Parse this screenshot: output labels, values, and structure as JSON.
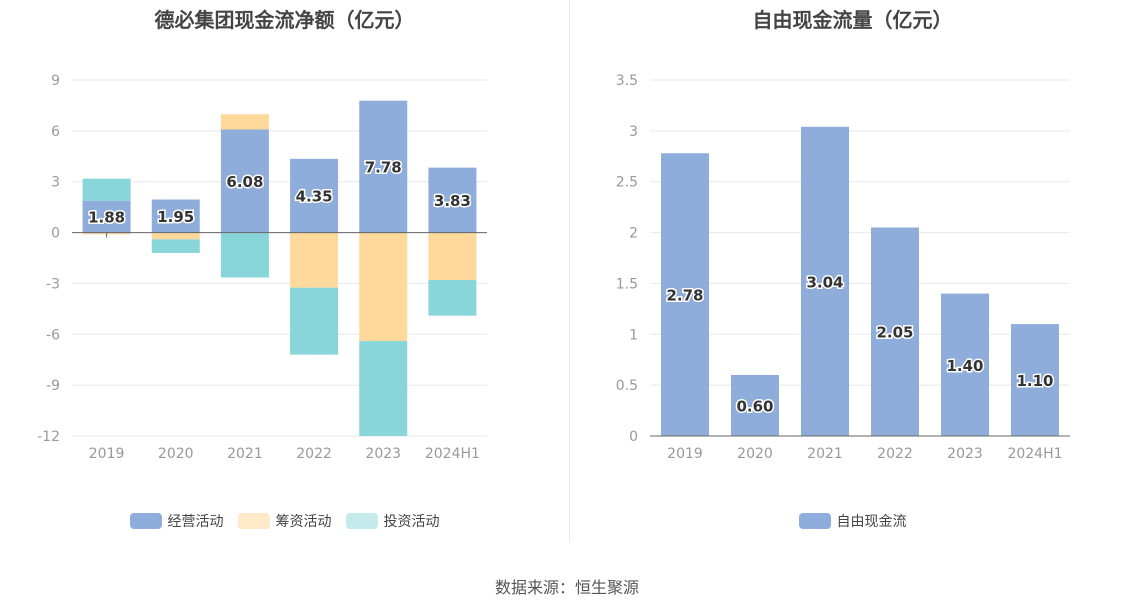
{
  "source": "数据来源：恒生聚源",
  "colors": {
    "operating": "#8eaddb",
    "financing": "#ffd99c",
    "investing": "#88d6da",
    "operating_legend": "#8eaddb",
    "financing_legend": "#ffe9c6",
    "investing_legend": "#c4eaec"
  },
  "chart_data": [
    {
      "type": "bar",
      "stacked": true,
      "title": "德必集团现金流净额（亿元）",
      "categories": [
        "2019",
        "2020",
        "2021",
        "2022",
        "2023",
        "2024H1"
      ],
      "yticks": [
        "9",
        "6",
        "3",
        "0",
        "-3",
        "-6",
        "-9",
        "-12"
      ],
      "ylim": [
        -12,
        9
      ],
      "legend_position": "bottom",
      "series": [
        {
          "name": "经营活动",
          "values": [
            1.88,
            1.95,
            6.08,
            4.35,
            7.78,
            3.83
          ],
          "labels": [
            "1.88",
            "1.95",
            "6.08",
            "4.35",
            "7.78",
            "3.83"
          ]
        },
        {
          "name": "筹资活动",
          "values": [
            -0.1,
            -0.4,
            0.9,
            -3.25,
            -6.4,
            -2.8
          ]
        },
        {
          "name": "投资活动",
          "values": [
            1.3,
            -0.8,
            -2.65,
            -3.95,
            -5.6,
            -2.1
          ]
        }
      ]
    },
    {
      "type": "bar",
      "title": "自由现金流量（亿元）",
      "categories": [
        "2019",
        "2020",
        "2021",
        "2022",
        "2023",
        "2024H1"
      ],
      "yticks": [
        "3.5",
        "3",
        "2.5",
        "2",
        "1.5",
        "1",
        "0.5",
        "0"
      ],
      "ylim": [
        0,
        3.5
      ],
      "legend_position": "bottom",
      "series": [
        {
          "name": "自由现金流",
          "values": [
            2.78,
            0.6,
            3.04,
            2.05,
            1.4,
            1.1
          ],
          "labels": [
            "2.78",
            "0.60",
            "3.04",
            "2.05",
            "1.40",
            "1.10"
          ]
        }
      ]
    }
  ]
}
